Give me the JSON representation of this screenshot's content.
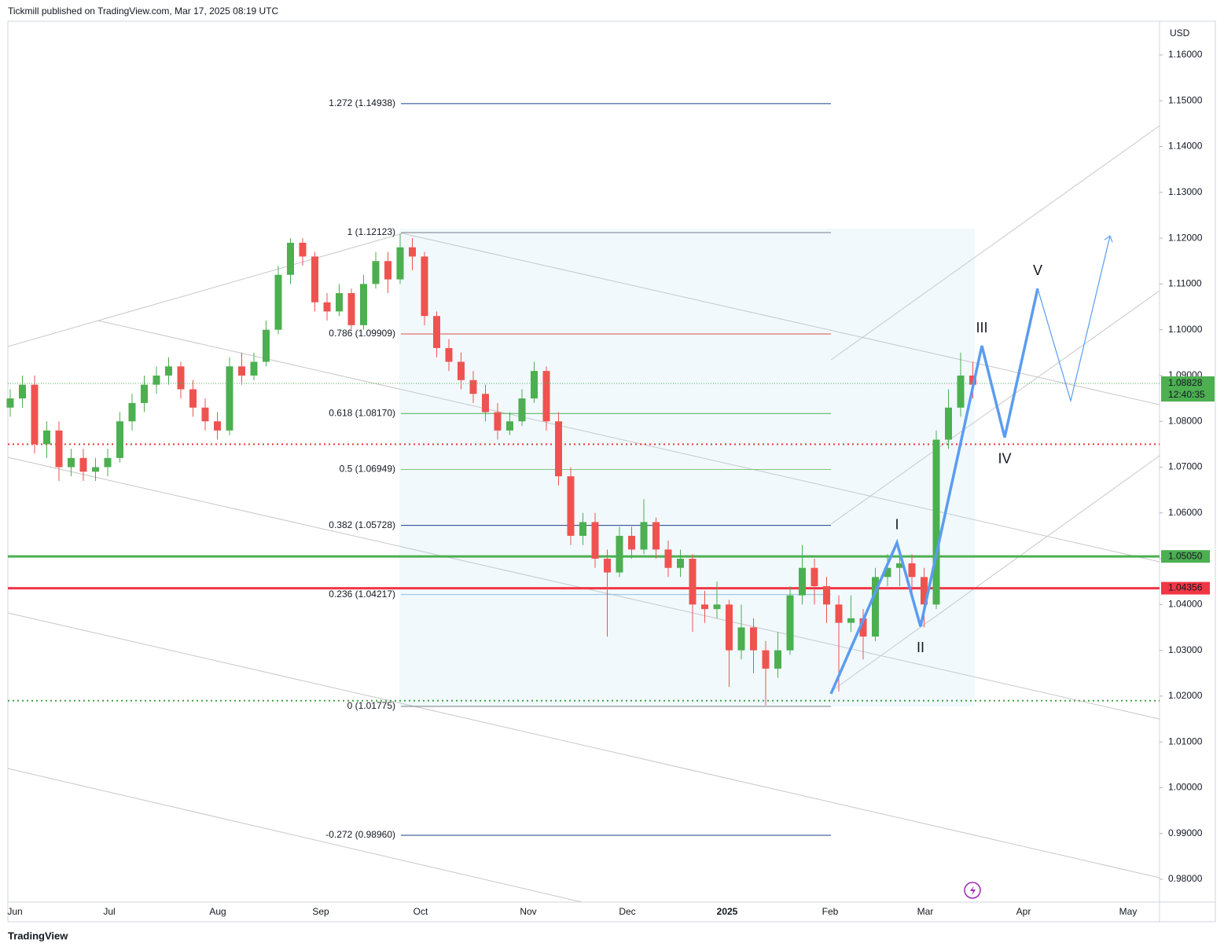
{
  "header": {
    "title": "Tickmill published on TradingView.com, Mar 17, 2025 08:19 UTC"
  },
  "footer": {
    "brand": "TradingView"
  },
  "chart_data": {
    "type": "candlestick",
    "currency": "USD",
    "ylim": [
      0.97502,
      1.16738
    ],
    "yticks": [
      {
        "value": 1.16,
        "label": "1.16000"
      },
      {
        "value": 1.15,
        "label": "1.15000"
      },
      {
        "value": 1.14,
        "label": "1.14000"
      },
      {
        "value": 1.13,
        "label": "1.13000"
      },
      {
        "value": 1.12,
        "label": "1.12000"
      },
      {
        "value": 1.11,
        "label": "1.11000"
      },
      {
        "value": 1.1,
        "label": "1.10000"
      },
      {
        "value": 1.09,
        "label": "1.09000"
      },
      {
        "value": 1.08,
        "label": "1.08000"
      },
      {
        "value": 1.07,
        "label": "1.07000"
      },
      {
        "value": 1.06,
        "label": "1.06000"
      },
      {
        "value": 1.05,
        "label": "1.05000"
      },
      {
        "value": 1.04,
        "label": "1.04000"
      },
      {
        "value": 1.03,
        "label": "1.03000"
      },
      {
        "value": 1.02,
        "label": "1.02000"
      },
      {
        "value": 1.01,
        "label": "1.01000"
      },
      {
        "value": 1.0,
        "label": "1.00000"
      },
      {
        "value": 0.99,
        "label": "0.99000"
      },
      {
        "value": 0.98,
        "label": "0.98000"
      }
    ],
    "categories": [
      "Jun",
      "Jul",
      "Aug",
      "Sep",
      "Oct",
      "Nov",
      "Dec",
      "2025",
      "Feb",
      "Mar",
      "Apr",
      "May"
    ],
    "up_color": "#4caf50",
    "down_color": "#ef5350",
    "candles": [
      [
        1.083,
        1.087,
        1.081,
        1.085
      ],
      [
        1.085,
        1.09,
        1.083,
        1.088
      ],
      [
        1.088,
        1.09,
        1.073,
        1.075
      ],
      [
        1.075,
        1.08,
        1.072,
        1.078
      ],
      [
        1.078,
        1.08,
        1.067,
        1.07
      ],
      [
        1.07,
        1.074,
        1.068,
        1.072
      ],
      [
        1.072,
        1.074,
        1.067,
        1.069
      ],
      [
        1.069,
        1.072,
        1.067,
        1.07
      ],
      [
        1.07,
        1.074,
        1.068,
        1.072
      ],
      [
        1.072,
        1.082,
        1.071,
        1.08
      ],
      [
        1.08,
        1.086,
        1.078,
        1.084
      ],
      [
        1.084,
        1.09,
        1.082,
        1.088
      ],
      [
        1.088,
        1.092,
        1.086,
        1.09
      ],
      [
        1.09,
        1.094,
        1.088,
        1.092
      ],
      [
        1.092,
        1.093,
        1.085,
        1.087
      ],
      [
        1.087,
        1.089,
        1.081,
        1.083
      ],
      [
        1.083,
        1.085,
        1.078,
        1.08
      ],
      [
        1.08,
        1.082,
        1.076,
        1.078
      ],
      [
        1.078,
        1.094,
        1.077,
        1.092
      ],
      [
        1.092,
        1.095,
        1.088,
        1.09
      ],
      [
        1.09,
        1.095,
        1.089,
        1.093
      ],
      [
        1.093,
        1.102,
        1.092,
        1.1
      ],
      [
        1.1,
        1.114,
        1.099,
        1.112
      ],
      [
        1.112,
        1.12,
        1.11,
        1.119
      ],
      [
        1.119,
        1.12,
        1.114,
        1.116
      ],
      [
        1.116,
        1.117,
        1.104,
        1.106
      ],
      [
        1.106,
        1.108,
        1.102,
        1.104
      ],
      [
        1.104,
        1.11,
        1.103,
        1.108
      ],
      [
        1.108,
        1.109,
        1.1,
        1.101
      ],
      [
        1.101,
        1.112,
        1.1,
        1.11
      ],
      [
        1.11,
        1.117,
        1.109,
        1.115
      ],
      [
        1.115,
        1.117,
        1.108,
        1.111
      ],
      [
        1.111,
        1.121,
        1.11,
        1.118
      ],
      [
        1.118,
        1.12,
        1.113,
        1.116
      ],
      [
        1.116,
        1.117,
        1.101,
        1.103
      ],
      [
        1.103,
        1.104,
        1.094,
        1.096
      ],
      [
        1.096,
        1.098,
        1.091,
        1.093
      ],
      [
        1.093,
        1.095,
        1.087,
        1.089
      ],
      [
        1.089,
        1.091,
        1.084,
        1.086
      ],
      [
        1.086,
        1.088,
        1.08,
        1.082
      ],
      [
        1.082,
        1.084,
        1.076,
        1.078
      ],
      [
        1.078,
        1.082,
        1.077,
        1.08
      ],
      [
        1.08,
        1.087,
        1.079,
        1.085
      ],
      [
        1.085,
        1.093,
        1.084,
        1.091
      ],
      [
        1.091,
        1.092,
        1.078,
        1.08
      ],
      [
        1.08,
        1.082,
        1.066,
        1.068
      ],
      [
        1.068,
        1.07,
        1.053,
        1.055
      ],
      [
        1.055,
        1.06,
        1.053,
        1.058
      ],
      [
        1.058,
        1.06,
        1.048,
        1.05
      ],
      [
        1.05,
        1.052,
        1.033,
        1.047
      ],
      [
        1.047,
        1.057,
        1.046,
        1.055
      ],
      [
        1.055,
        1.057,
        1.05,
        1.052
      ],
      [
        1.052,
        1.063,
        1.051,
        1.058
      ],
      [
        1.058,
        1.059,
        1.05,
        1.052
      ],
      [
        1.052,
        1.054,
        1.046,
        1.048
      ],
      [
        1.048,
        1.052,
        1.046,
        1.05
      ],
      [
        1.05,
        1.051,
        1.034,
        1.04
      ],
      [
        1.04,
        1.043,
        1.036,
        1.039
      ],
      [
        1.039,
        1.045,
        1.037,
        1.04
      ],
      [
        1.04,
        1.041,
        1.022,
        1.03
      ],
      [
        1.03,
        1.04,
        1.028,
        1.035
      ],
      [
        1.035,
        1.037,
        1.025,
        1.03
      ],
      [
        1.03,
        1.032,
        1.018,
        1.026
      ],
      [
        1.026,
        1.034,
        1.024,
        1.03
      ],
      [
        1.03,
        1.044,
        1.029,
        1.042
      ],
      [
        1.042,
        1.053,
        1.04,
        1.048
      ],
      [
        1.048,
        1.05,
        1.04,
        1.044
      ],
      [
        1.044,
        1.046,
        1.036,
        1.04
      ],
      [
        1.04,
        1.042,
        1.021,
        1.036
      ],
      [
        1.036,
        1.042,
        1.034,
        1.037
      ],
      [
        1.037,
        1.039,
        1.028,
        1.033
      ],
      [
        1.033,
        1.048,
        1.032,
        1.046
      ],
      [
        1.046,
        1.051,
        1.044,
        1.048
      ],
      [
        1.048,
        1.052,
        1.044,
        1.049
      ],
      [
        1.049,
        1.051,
        1.042,
        1.046
      ],
      [
        1.046,
        1.048,
        1.035,
        1.04
      ],
      [
        1.04,
        1.078,
        1.039,
        1.076
      ],
      [
        1.076,
        1.087,
        1.074,
        1.083
      ],
      [
        1.083,
        1.095,
        1.081,
        1.09
      ],
      [
        1.09,
        1.093,
        1.085,
        1.088
      ]
    ],
    "fib_levels": [
      {
        "label": "1.272 (1.14938)",
        "value": 1.14938,
        "color": "#1e3f8a"
      },
      {
        "label": "1 (1.12123)",
        "value": 1.12123,
        "color": "#787b86"
      },
      {
        "label": "0.786 (1.09909)",
        "value": 1.09909,
        "color": "#e0504a"
      },
      {
        "label": "0.618 (1.08170)",
        "value": 1.0817,
        "color": "#4caf50"
      },
      {
        "label": "0.5 (1.06949)",
        "value": 1.06949,
        "color": "#81c784"
      },
      {
        "label": "0.382 (1.05728)",
        "value": 1.05728,
        "color": "#1e3f8a"
      },
      {
        "label": "0.236 (1.04217)",
        "value": 1.04217,
        "color": "#90bfe0"
      },
      {
        "label": "0 (1.01775)",
        "value": 1.01775,
        "color": "#787b86"
      },
      {
        "label": "-0.272 (0.98960)",
        "value": 0.9896,
        "color": "#1e3f8a"
      }
    ],
    "price_lines": [
      {
        "label": "1.05050",
        "value": 1.0505,
        "color": "#4caf50"
      },
      {
        "label": "1.04356",
        "value": 1.04356,
        "color": "#f23645"
      }
    ],
    "last_price": {
      "label": "1.08828",
      "value": 1.08828,
      "countdown": "12:40:35",
      "color": "#4caf50"
    },
    "dotted_levels": [
      {
        "value": 1.075,
        "color": "#e53935"
      },
      {
        "value": 1.019,
        "color": "#43a047"
      }
    ],
    "wave_start": 1.0205,
    "waves": [
      {
        "label": "I",
        "value": 1.0535
      },
      {
        "label": "II",
        "value": 1.0352
      },
      {
        "label": "III",
        "value": 1.0965
      },
      {
        "label": "IV",
        "value": 1.0765
      },
      {
        "label": "V",
        "value": 1.109
      }
    ],
    "projection": [
      1.0845,
      1.1205
    ],
    "wave_color": "#5b9cf0"
  }
}
